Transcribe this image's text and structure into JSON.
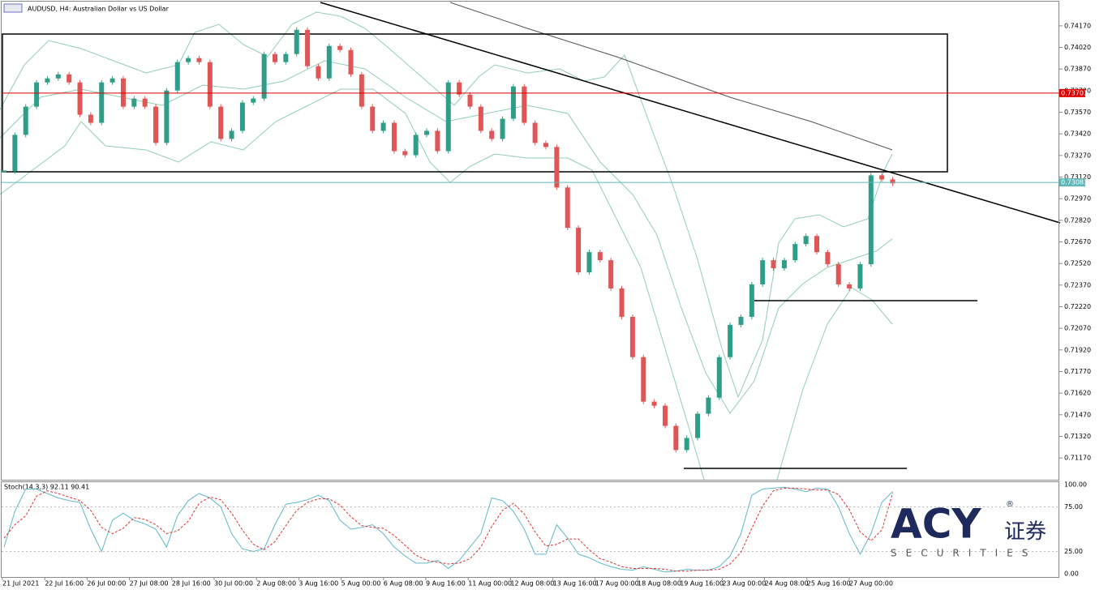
{
  "chart_data": [
    {
      "type": "candlestick",
      "title": "AUDUSD, H4:  Australian Dollar vs US Dollar",
      "up_color": "#2f9e88",
      "down_color": "#e05555",
      "close": [
        0.7316,
        0.73413,
        0.73609,
        0.73777,
        0.73805,
        0.73833,
        0.73777,
        0.73553,
        0.73497,
        0.73777,
        0.73805,
        0.73609,
        0.73665,
        0.73609,
        0.73357,
        0.73721,
        0.73918,
        0.73946,
        0.73918,
        0.73609,
        0.73385,
        0.73441,
        0.73637,
        0.73665,
        0.73974,
        0.73918,
        0.73974,
        0.74142,
        0.7389,
        0.73805,
        0.7403,
        0.74002,
        0.73833,
        0.73609,
        0.73441,
        0.73497,
        0.733,
        0.73272,
        0.73413,
        0.73441,
        0.733,
        0.73777,
        0.73693,
        0.73609,
        0.73441,
        0.73385,
        0.73525,
        0.73749,
        0.73497,
        0.73357,
        0.73329,
        0.73048,
        0.72768,
        0.72459,
        0.72599,
        0.72543,
        0.72347,
        0.7215,
        0.7187,
        0.71561,
        0.71533,
        0.71393,
        0.71225,
        0.71309,
        0.71477,
        0.71589,
        0.7187,
        0.72094,
        0.7215,
        0.72375,
        0.72543,
        0.72487,
        0.72543,
        0.72655,
        0.72711,
        0.72599,
        0.72515,
        0.72375,
        0.72347,
        0.72515,
        0.73132,
        0.73104,
        0.73076
      ],
      "ylim": [
        0.71019,
        0.74338
      ],
      "yticks": [
        {
          "value": 0.7117,
          "label": "0.71170"
        },
        {
          "value": 0.7132,
          "label": "0.71320"
        },
        {
          "value": 0.7147,
          "label": "0.71470"
        },
        {
          "value": 0.7162,
          "label": "0.71620"
        },
        {
          "value": 0.7177,
          "label": "0.71770"
        },
        {
          "value": 0.7192,
          "label": "0.71920"
        },
        {
          "value": 0.7207,
          "label": "0.72070"
        },
        {
          "value": 0.7222,
          "label": "0.72220"
        },
        {
          "value": 0.7237,
          "label": "0.72370"
        },
        {
          "value": 0.7252,
          "label": "0.72520"
        },
        {
          "value": 0.7267,
          "label": "0.72670"
        },
        {
          "value": 0.7282,
          "label": "0.72820"
        },
        {
          "value": 0.7297,
          "label": "0.72970"
        },
        {
          "value": 0.7312,
          "label": "0.73120"
        },
        {
          "value": 0.7327,
          "label": "0.73270"
        },
        {
          "value": 0.7342,
          "label": "0.73420"
        },
        {
          "value": 0.7357,
          "label": "0.73570"
        },
        {
          "value": 0.7372,
          "label": "0.73720"
        },
        {
          "value": 0.7387,
          "label": "0.73870"
        },
        {
          "value": 0.7402,
          "label": "0.74020"
        },
        {
          "value": 0.7417,
          "label": "0.74170"
        }
      ],
      "price_lines": [
        {
          "value": 0.73703,
          "color": "#e00000"
        },
        {
          "value": 0.73083,
          "color": "#5fb8b8"
        }
      ],
      "x_labels": [
        "21 Jul 2021",
        "22 Jul 16:00",
        "26 Jul 00:00",
        "27 Jul 08:00",
        "28 Jul 16:00",
        "30 Jul 00:00",
        "2 Aug 08:00",
        "3 Aug 16:00",
        "5 Aug 00:00",
        "6 Aug 08:00",
        "9 Aug 16:00",
        "11 Aug 00:00",
        "12 Aug 08:00",
        "13 Aug 16:00",
        "17 Aug 00:00",
        "18 Aug 08:00",
        "19 Aug 16:00",
        "23 Aug 00:00",
        "24 Aug 08:00",
        "25 Aug 16:00",
        "27 Aug 00:00"
      ]
    },
    {
      "type": "line",
      "title": "Stoch(14,3,3) 92.11 90.41",
      "series": [
        {
          "color": "#5fb8c8",
          "dash": false,
          "values": [
            30,
            70,
            95,
            95,
            90,
            85,
            82,
            80,
            50,
            25,
            60,
            68,
            60,
            56,
            50,
            30,
            65,
            82,
            90,
            85,
            75,
            45,
            28,
            25,
            28,
            55,
            78,
            80,
            83,
            88,
            82,
            60,
            50,
            52,
            55,
            45,
            30,
            20,
            12,
            12,
            15,
            6,
            15,
            30,
            45,
            85,
            82,
            70,
            50,
            22,
            22,
            55,
            40,
            22,
            18,
            12,
            8,
            5,
            4,
            8,
            5,
            2,
            3,
            5,
            4,
            4,
            8,
            20,
            45,
            88,
            95,
            96,
            97,
            95,
            92,
            96,
            95,
            75,
            45,
            22,
            45,
            80,
            92.11
          ]
        },
        {
          "color": "#e03030",
          "dash": true,
          "values": [
            40,
            55,
            65,
            87,
            93,
            90,
            86,
            82,
            71,
            52,
            45,
            51,
            63,
            61,
            55,
            45,
            48,
            59,
            79,
            86,
            83,
            68,
            49,
            33,
            27,
            36,
            54,
            71,
            80,
            84,
            84,
            77,
            64,
            54,
            52,
            51,
            43,
            32,
            21,
            15,
            13,
            11,
            12,
            17,
            30,
            53,
            71,
            79,
            67,
            47,
            31,
            33,
            39,
            39,
            27,
            17,
            13,
            8,
            6,
            6,
            6,
            5,
            3,
            3,
            4,
            4,
            5,
            11,
            24,
            51,
            76,
            93,
            96,
            96,
            95,
            94,
            94,
            89,
            72,
            47,
            37,
            49,
            90.41
          ]
        }
      ],
      "ylim": [
        -4.5,
        102.7
      ],
      "yticks": [
        {
          "value": 100,
          "label": "100.00"
        },
        {
          "value": 75,
          "label": "75.00"
        },
        {
          "value": 25,
          "label": "25.00"
        },
        {
          "value": 0,
          "label": "0.00"
        }
      ]
    }
  ],
  "logo": {
    "mark": "ACY",
    "registered": "®",
    "cn": "证券",
    "tagline": "SECURITIES"
  }
}
